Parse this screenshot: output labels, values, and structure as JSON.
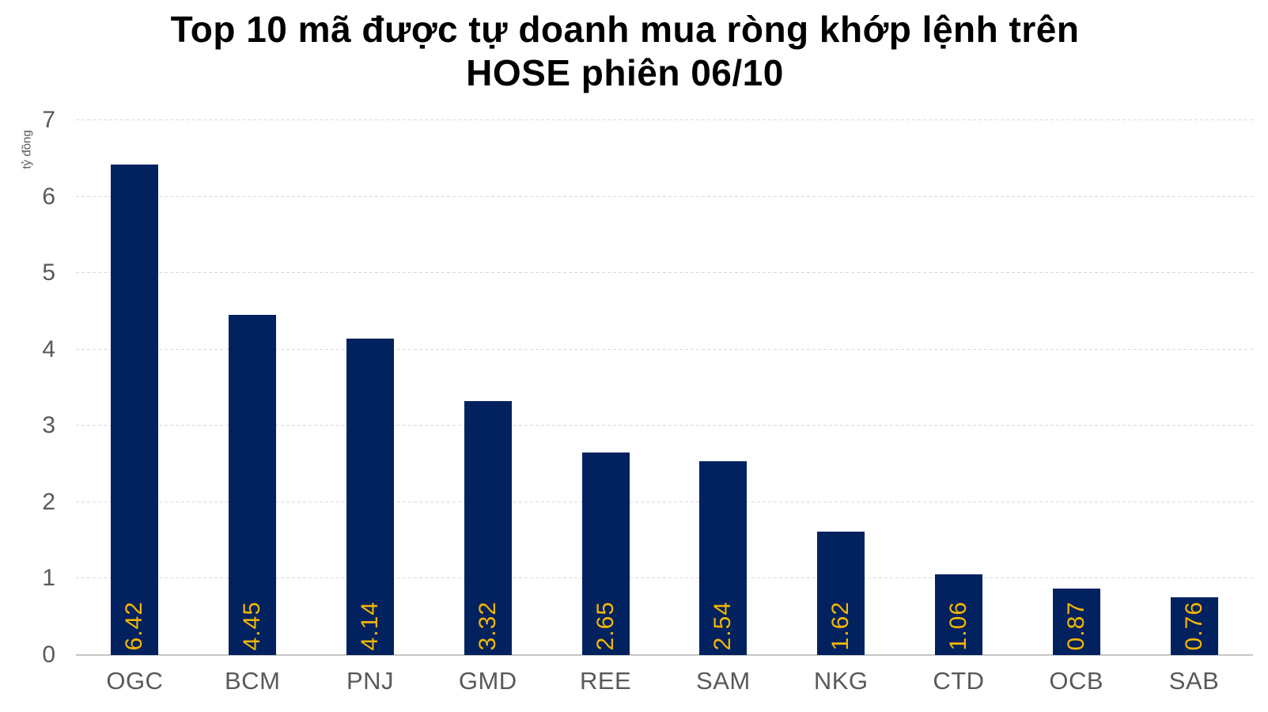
{
  "chart": {
    "title_line1": "Top 10 mã được tự doanh mua ròng khớp lệnh trên",
    "title_line2": "HOSE phiên 06/10",
    "y_unit_label": "tỷ đồng"
  },
  "chart_data": {
    "type": "bar",
    "title": "Top 10 mã được tự doanh mua ròng khớp lệnh trên HOSE phiên 06/10",
    "categories": [
      "OGC",
      "BCM",
      "PNJ",
      "GMD",
      "REE",
      "SAM",
      "NKG",
      "CTD",
      "OCB",
      "SAB"
    ],
    "values": [
      6.42,
      4.45,
      4.14,
      3.32,
      2.65,
      2.54,
      1.62,
      1.06,
      0.87,
      0.76
    ],
    "value_labels": [
      "6.42",
      "4.45",
      "4.14",
      "3.32",
      "2.65",
      "2.54",
      "1.62",
      "1.06",
      "0.87",
      "0.76"
    ],
    "xlabel": "",
    "ylabel": "tỷ đồng",
    "ylim": [
      0,
      7
    ],
    "yticks": [
      0,
      1,
      2,
      3,
      4,
      5,
      6,
      7
    ],
    "legend": "none",
    "grid": "horizontal-dashed",
    "value_label_position": "inside-bottom-rotated-90",
    "colors": {
      "bar": "#01225F",
      "value_label": "#F5B700",
      "axis_text": "#595959",
      "gridline": "#D9D9D9",
      "baseline": "#C6C6C6",
      "title": "#000000"
    }
  }
}
